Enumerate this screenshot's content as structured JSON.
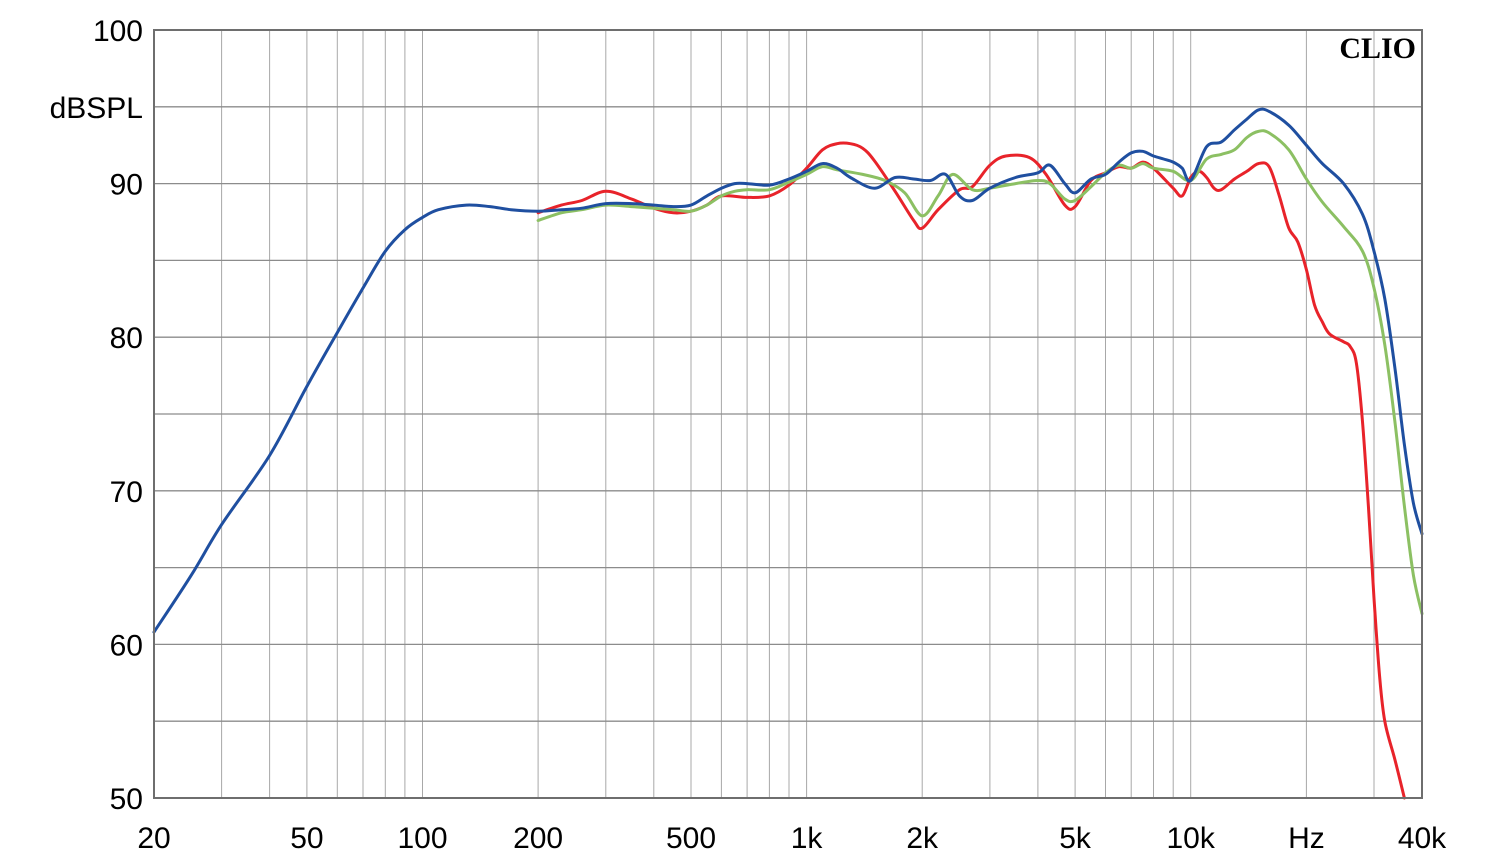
{
  "watermark": "CLIO",
  "colors": {
    "background": "#ffffff",
    "grid": "#8c8c8c",
    "red": "#e8232a",
    "green": "#8cc063",
    "blue": "#1f4fa0"
  },
  "chart_data": {
    "type": "line",
    "title": "",
    "xlabel": "Hz",
    "ylabel": "dBSPL",
    "x_scale": "log",
    "xlim": [
      20,
      40000
    ],
    "ylim": [
      50,
      100
    ],
    "grid": true,
    "x_tick_labels": [
      {
        "value": 20,
        "label": "20"
      },
      {
        "value": 50,
        "label": "50"
      },
      {
        "value": 100,
        "label": "100"
      },
      {
        "value": 200,
        "label": "200"
      },
      {
        "value": 500,
        "label": "500"
      },
      {
        "value": 1000,
        "label": "1k"
      },
      {
        "value": 2000,
        "label": "2k"
      },
      {
        "value": 5000,
        "label": "5k"
      },
      {
        "value": 10000,
        "label": "10k"
      },
      {
        "value": 20000,
        "label": "Hz"
      },
      {
        "value": 40000,
        "label": "40k"
      }
    ],
    "y_tick_labels": [
      {
        "value": 100,
        "label": "100"
      },
      {
        "value": 95,
        "label": "dBSPL"
      },
      {
        "value": 90,
        "label": "90"
      },
      {
        "value": 80,
        "label": "80"
      },
      {
        "value": 70,
        "label": "70"
      },
      {
        "value": 60,
        "label": "60"
      },
      {
        "value": 50,
        "label": "50"
      }
    ],
    "series": [
      {
        "color": "#1f4fa0",
        "points": [
          [
            20,
            60.8
          ],
          [
            25,
            64.5
          ],
          [
            30,
            67.8
          ],
          [
            40,
            72.3
          ],
          [
            50,
            76.8
          ],
          [
            60,
            80.3
          ],
          [
            70,
            83.2
          ],
          [
            80,
            85.6
          ],
          [
            90,
            87.0
          ],
          [
            100,
            87.8
          ],
          [
            110,
            88.3
          ],
          [
            130,
            88.6
          ],
          [
            150,
            88.5
          ],
          [
            170,
            88.3
          ],
          [
            200,
            88.2
          ],
          [
            230,
            88.3
          ],
          [
            260,
            88.4
          ],
          [
            300,
            88.7
          ],
          [
            350,
            88.7
          ],
          [
            400,
            88.6
          ],
          [
            450,
            88.5
          ],
          [
            500,
            88.6
          ],
          [
            550,
            89.2
          ],
          [
            600,
            89.7
          ],
          [
            650,
            90.0
          ],
          [
            700,
            90.0
          ],
          [
            800,
            89.9
          ],
          [
            900,
            90.3
          ],
          [
            1000,
            90.8
          ],
          [
            1100,
            91.3
          ],
          [
            1200,
            91.0
          ],
          [
            1300,
            90.4
          ],
          [
            1500,
            89.7
          ],
          [
            1700,
            90.4
          ],
          [
            1900,
            90.3
          ],
          [
            2100,
            90.2
          ],
          [
            2300,
            90.6
          ],
          [
            2500,
            89.2
          ],
          [
            2700,
            88.9
          ],
          [
            3000,
            89.7
          ],
          [
            3500,
            90.4
          ],
          [
            4000,
            90.7
          ],
          [
            4300,
            91.2
          ],
          [
            4700,
            90.0
          ],
          [
            5000,
            89.4
          ],
          [
            5500,
            90.3
          ],
          [
            6000,
            90.6
          ],
          [
            6500,
            91.4
          ],
          [
            7000,
            92.0
          ],
          [
            7500,
            92.1
          ],
          [
            8000,
            91.8
          ],
          [
            8500,
            91.6
          ],
          [
            9000,
            91.4
          ],
          [
            9500,
            91.0
          ],
          [
            10000,
            90.2
          ],
          [
            11000,
            92.4
          ],
          [
            12000,
            92.7
          ],
          [
            13000,
            93.5
          ],
          [
            14000,
            94.2
          ],
          [
            15000,
            94.8
          ],
          [
            16000,
            94.7
          ],
          [
            18000,
            93.8
          ],
          [
            20000,
            92.5
          ],
          [
            22000,
            91.3
          ],
          [
            25000,
            90.0
          ],
          [
            28000,
            88.0
          ],
          [
            30000,
            85.6
          ],
          [
            32000,
            82.5
          ],
          [
            34000,
            78.0
          ],
          [
            36000,
            73.0
          ],
          [
            38000,
            69.2
          ],
          [
            40000,
            67.2
          ]
        ]
      },
      {
        "color": "#8cc063",
        "points": [
          [
            200,
            87.6
          ],
          [
            230,
            88.1
          ],
          [
            260,
            88.3
          ],
          [
            300,
            88.6
          ],
          [
            350,
            88.5
          ],
          [
            400,
            88.4
          ],
          [
            450,
            88.3
          ],
          [
            500,
            88.2
          ],
          [
            550,
            88.6
          ],
          [
            600,
            89.2
          ],
          [
            650,
            89.5
          ],
          [
            700,
            89.6
          ],
          [
            800,
            89.6
          ],
          [
            900,
            90.1
          ],
          [
            1000,
            90.6
          ],
          [
            1100,
            91.1
          ],
          [
            1200,
            90.9
          ],
          [
            1400,
            90.6
          ],
          [
            1600,
            90.2
          ],
          [
            1800,
            89.4
          ],
          [
            2000,
            87.9
          ],
          [
            2200,
            89.2
          ],
          [
            2400,
            90.6
          ],
          [
            2700,
            89.6
          ],
          [
            3000,
            89.7
          ],
          [
            3500,
            90.0
          ],
          [
            4000,
            90.2
          ],
          [
            4300,
            90.0
          ],
          [
            4700,
            89.0
          ],
          [
            5000,
            88.9
          ],
          [
            5500,
            89.8
          ],
          [
            6000,
            90.7
          ],
          [
            6500,
            91.2
          ],
          [
            7000,
            91.0
          ],
          [
            7500,
            91.3
          ],
          [
            8000,
            91.0
          ],
          [
            9000,
            90.8
          ],
          [
            10000,
            90.2
          ],
          [
            11000,
            91.6
          ],
          [
            12000,
            91.9
          ],
          [
            13000,
            92.2
          ],
          [
            14000,
            93.0
          ],
          [
            15000,
            93.4
          ],
          [
            16000,
            93.3
          ],
          [
            18000,
            92.2
          ],
          [
            20000,
            90.3
          ],
          [
            22000,
            88.8
          ],
          [
            25000,
            87.2
          ],
          [
            28000,
            85.6
          ],
          [
            30000,
            83.2
          ],
          [
            32000,
            79.5
          ],
          [
            34000,
            74.5
          ],
          [
            36000,
            69.0
          ],
          [
            38000,
            64.5
          ],
          [
            40000,
            62.0
          ]
        ]
      },
      {
        "color": "#e8232a",
        "points": [
          [
            200,
            88.1
          ],
          [
            230,
            88.6
          ],
          [
            260,
            88.9
          ],
          [
            300,
            89.5
          ],
          [
            350,
            89.0
          ],
          [
            400,
            88.4
          ],
          [
            450,
            88.1
          ],
          [
            500,
            88.2
          ],
          [
            550,
            88.6
          ],
          [
            600,
            89.2
          ],
          [
            700,
            89.1
          ],
          [
            800,
            89.2
          ],
          [
            900,
            89.9
          ],
          [
            1000,
            91.0
          ],
          [
            1100,
            92.2
          ],
          [
            1200,
            92.6
          ],
          [
            1300,
            92.6
          ],
          [
            1400,
            92.3
          ],
          [
            1500,
            91.5
          ],
          [
            1700,
            89.5
          ],
          [
            1900,
            87.6
          ],
          [
            2000,
            87.1
          ],
          [
            2200,
            88.3
          ],
          [
            2500,
            89.6
          ],
          [
            2700,
            89.8
          ],
          [
            3000,
            91.2
          ],
          [
            3300,
            91.8
          ],
          [
            3800,
            91.7
          ],
          [
            4200,
            90.6
          ],
          [
            4700,
            88.6
          ],
          [
            5000,
            88.5
          ],
          [
            5500,
            90.2
          ],
          [
            6000,
            90.7
          ],
          [
            6500,
            91.1
          ],
          [
            7000,
            91.0
          ],
          [
            7500,
            91.4
          ],
          [
            8000,
            91.0
          ],
          [
            9000,
            89.7
          ],
          [
            9500,
            89.2
          ],
          [
            10000,
            90.4
          ],
          [
            10500,
            90.8
          ],
          [
            11000,
            90.4
          ],
          [
            11500,
            89.7
          ],
          [
            12000,
            89.6
          ],
          [
            13000,
            90.3
          ],
          [
            14000,
            90.8
          ],
          [
            15000,
            91.3
          ],
          [
            16000,
            91.1
          ],
          [
            17000,
            89.2
          ],
          [
            18000,
            87.1
          ],
          [
            19000,
            86.2
          ],
          [
            20000,
            84.4
          ],
          [
            21000,
            82.1
          ],
          [
            22000,
            81.0
          ],
          [
            23000,
            80.2
          ],
          [
            25000,
            79.7
          ],
          [
            26000,
            79.4
          ],
          [
            27000,
            78.3
          ],
          [
            28000,
            74.5
          ],
          [
            29000,
            69.0
          ],
          [
            30000,
            63.0
          ],
          [
            31000,
            58.0
          ],
          [
            32000,
            55.0
          ],
          [
            34000,
            52.5
          ],
          [
            36000,
            50.0
          ]
        ]
      }
    ]
  }
}
